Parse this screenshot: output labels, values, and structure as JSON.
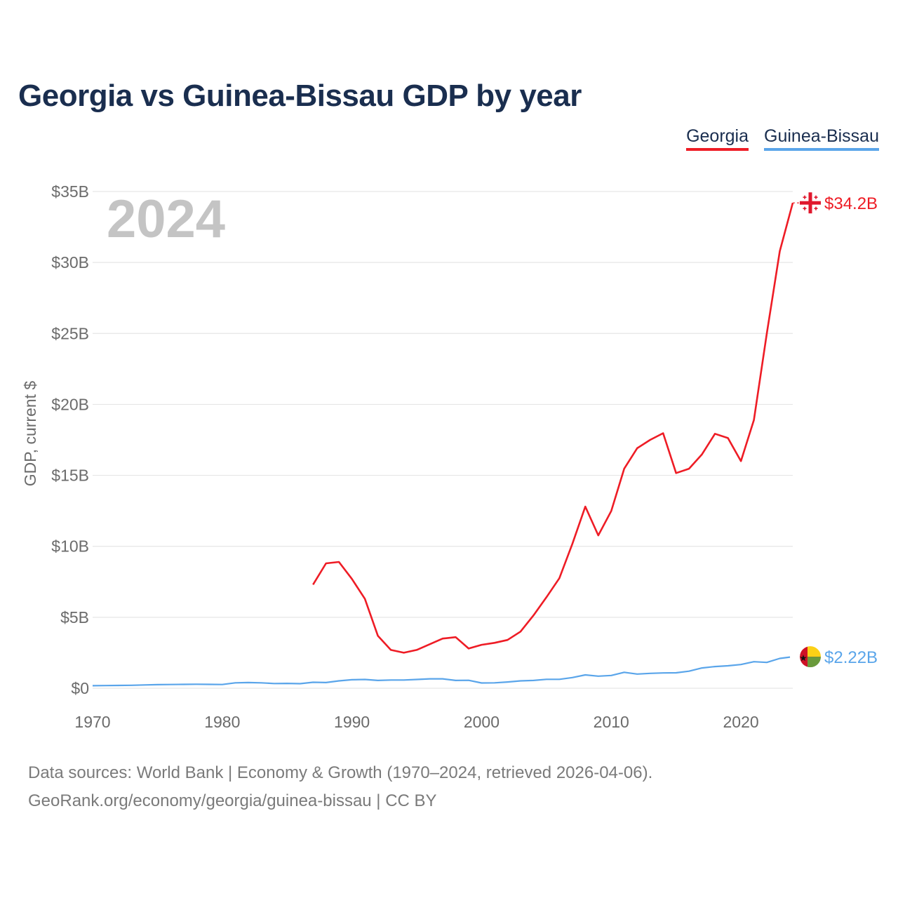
{
  "title": "Georgia vs Guinea-Bissau GDP by year",
  "legend": {
    "georgia": "Georgia",
    "guinea_bissau": "Guinea-Bissau"
  },
  "footer": {
    "line1": "Data sources: World Bank | Economy & Growth (1970–2024, retrieved 2026-04-06).",
    "line2": "GeoRank.org/economy/georgia/guinea-bissau | CC BY"
  },
  "colors": {
    "georgia": "#ee1c25",
    "guinea_bissau": "#5aa5ea",
    "grid": "#e6e6e6",
    "axis_text": "#6b6b6b",
    "year_watermark": "#c4c4c4"
  },
  "chart_data": {
    "type": "line",
    "title": "Georgia vs Guinea-Bissau GDP by year",
    "year_label": "2024",
    "xlabel": "",
    "ylabel": "GDP, current $",
    "xlim": [
      1970,
      2024
    ],
    "ylim": [
      0,
      35
    ],
    "y_unit": "billion US$",
    "x_ticks": [
      1970,
      1980,
      1990,
      2000,
      2010,
      2020
    ],
    "y_ticks": [
      0,
      5,
      10,
      15,
      20,
      25,
      30,
      35
    ],
    "y_tick_labels": [
      "$0",
      "$5B",
      "$10B",
      "$15B",
      "$20B",
      "$25B",
      "$30B",
      "$35B"
    ],
    "grid": true,
    "legend_position": "top-right",
    "series": [
      {
        "name": "Georgia",
        "color": "#ee1c25",
        "end_label": "$34.2B",
        "icon": "georgia-flag-icon",
        "x": [
          1987,
          1988,
          1989,
          1990,
          1991,
          1992,
          1993,
          1994,
          1995,
          1996,
          1997,
          1998,
          1999,
          2000,
          2001,
          2002,
          2003,
          2004,
          2005,
          2006,
          2007,
          2008,
          2009,
          2010,
          2011,
          2012,
          2013,
          2014,
          2015,
          2016,
          2017,
          2018,
          2019,
          2020,
          2021,
          2022,
          2023,
          2024
        ],
        "values": [
          7.3,
          8.8,
          8.9,
          7.7,
          6.3,
          3.7,
          2.7,
          2.5,
          2.7,
          3.1,
          3.5,
          3.6,
          2.8,
          3.06,
          3.2,
          3.4,
          3.99,
          5.13,
          6.41,
          7.75,
          10.17,
          12.8,
          10.77,
          12.49,
          15.47,
          16.91,
          17.5,
          17.97,
          15.16,
          15.47,
          16.48,
          17.93,
          17.63,
          16.0,
          18.9,
          25.0,
          30.8,
          34.2
        ]
      },
      {
        "name": "Guinea-Bissau",
        "color": "#5aa5ea",
        "end_label": "$2.22B",
        "icon": "guinea-bissau-flag-icon",
        "x": [
          1970,
          1971,
          1972,
          1973,
          1974,
          1975,
          1976,
          1977,
          1978,
          1979,
          1980,
          1981,
          1982,
          1983,
          1984,
          1985,
          1986,
          1987,
          1988,
          1989,
          1990,
          1991,
          1992,
          1993,
          1994,
          1995,
          1996,
          1997,
          1998,
          1999,
          2000,
          2001,
          2002,
          2003,
          2004,
          2005,
          2006,
          2007,
          2008,
          2009,
          2010,
          2011,
          2012,
          2013,
          2014,
          2015,
          2016,
          2017,
          2018,
          2019,
          2020,
          2021,
          2022,
          2023,
          2024
        ],
        "values": [
          0.18,
          0.19,
          0.2,
          0.21,
          0.23,
          0.25,
          0.26,
          0.27,
          0.28,
          0.27,
          0.26,
          0.38,
          0.4,
          0.38,
          0.33,
          0.34,
          0.32,
          0.42,
          0.4,
          0.52,
          0.6,
          0.62,
          0.55,
          0.58,
          0.58,
          0.62,
          0.66,
          0.66,
          0.55,
          0.56,
          0.37,
          0.38,
          0.44,
          0.52,
          0.55,
          0.63,
          0.63,
          0.75,
          0.94,
          0.85,
          0.9,
          1.12,
          1.0,
          1.05,
          1.08,
          1.09,
          1.2,
          1.43,
          1.53,
          1.58,
          1.67,
          1.87,
          1.82,
          2.1,
          2.22
        ]
      }
    ]
  }
}
